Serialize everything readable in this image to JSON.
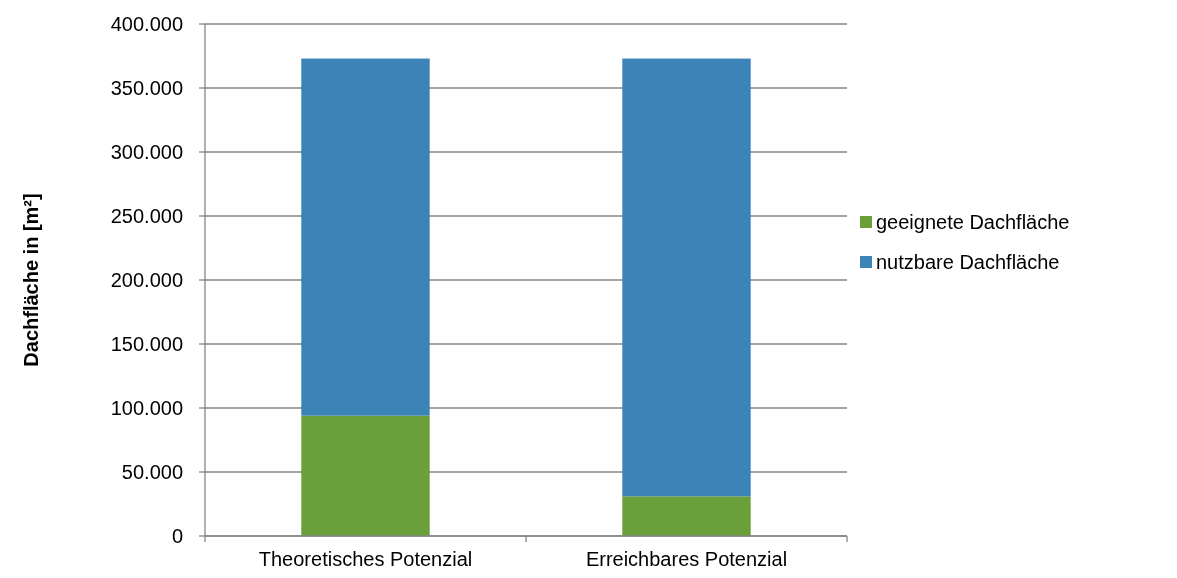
{
  "chart_data": {
    "type": "bar",
    "stacked": true,
    "ylabel": "Dachfläche in [m²]",
    "categories": [
      "Theoretisches Potenzial",
      "Erreichbares Potenzial"
    ],
    "series": [
      {
        "name": "geeignete Dachfläche",
        "color": "#6a9f3a",
        "values": [
          94000,
          31000
        ]
      },
      {
        "name": "nutzbare Dachfläche",
        "color": "#3c83b8",
        "values": [
          279000,
          342000
        ]
      }
    ],
    "ylim": [
      0,
      400000
    ],
    "yticks": [
      0,
      {
        "value": 50000,
        "label": "50.000"
      },
      {
        "value": 100000,
        "label": "100.000"
      },
      {
        "value": 150000,
        "label": "150.000"
      },
      {
        "value": 200000,
        "label": "200.000"
      },
      {
        "value": 250000,
        "label": "250.000"
      },
      {
        "value": 300000,
        "label": "300.000"
      },
      {
        "value": 350000,
        "label": "350.000"
      },
      {
        "value": 400000,
        "label": "400.000"
      }
    ],
    "grid": "y",
    "legend": "right"
  }
}
